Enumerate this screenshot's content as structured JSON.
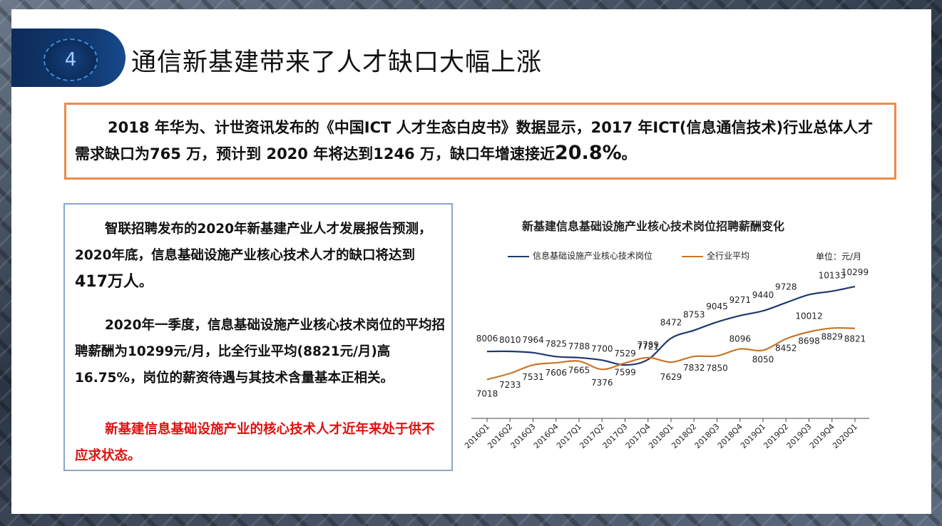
{
  "slide": {
    "number": "4",
    "title": "通信新基建带来了人才缺口大幅上涨"
  },
  "intro": {
    "text": "2018 年华为、计世资讯发布的《中国ICT 人才生态白皮书》数据显示，2017 年ICT(信息通信技术)行业总体人才需求缺口为765 万，预计到 2020 年将达到1246 万，缺口年增速接近",
    "highlight": "20.8%",
    "end": "。"
  },
  "left_panel": {
    "p1_text": "智联招聘发布的2020年新基建产业人才发展报告预测，2020年底，信息基础设施产业核心技术人才的缺口将达到",
    "p1_highlight": "417万人",
    "p1_end": "。",
    "p2": "2020年一季度，信息基础设施产业核心技术岗位的平均招聘薪酬为10299元/月，比全行业平均(8821元/月)高16.75%，岗位的薪资待遇与其技术含量基本正相关。",
    "p3": "新基建信息基础设施产业的核心技术人才近年来处于供不应求状态。"
  },
  "chart_data": {
    "type": "line",
    "title": "新基建信息基础设施产业核心技术岗位招聘薪酬变化",
    "unit": "单位：元/月",
    "categories": [
      "2016Q1",
      "2016Q2",
      "2016Q3",
      "2016Q4",
      "2017Q1",
      "2017Q2",
      "2017Q3",
      "2017Q4",
      "2018Q1",
      "2018Q2",
      "2018Q3",
      "2018Q4",
      "2019Q1",
      "2019Q2",
      "2019Q3",
      "2019Q4",
      "2020Q1"
    ],
    "series": [
      {
        "name": "信息基础设施产业核心技术岗位",
        "color": "#1f3a6e",
        "values": [
          8006,
          8010,
          7964,
          7825,
          7788,
          7700,
          7529,
          7721,
          8472,
          8753,
          9045,
          9271,
          9440,
          9728,
          10012,
          10133,
          10299
        ]
      },
      {
        "name": "全行业平均",
        "color": "#c8762c",
        "values": [
          7018,
          7233,
          7531,
          7606,
          7665,
          7376,
          7599,
          7789,
          7629,
          7832,
          7850,
          8096,
          8050,
          8452,
          8698,
          8829,
          8821
        ]
      }
    ],
    "grid": false,
    "legend": "top"
  }
}
